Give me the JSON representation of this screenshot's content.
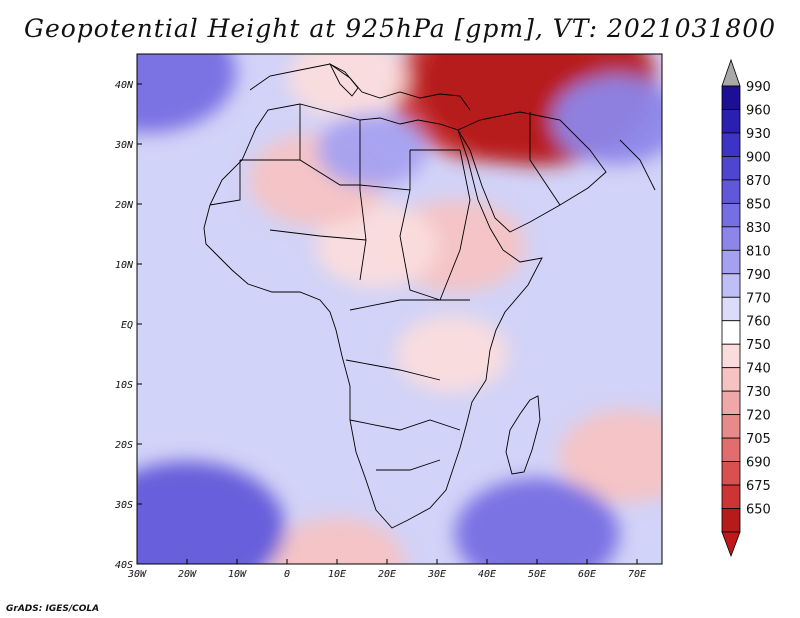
{
  "title": "Geopotential Height at 925hPa [gpm], VT: 2021031800",
  "credit": "GrADS: IGES/COLA",
  "map": {
    "region": "Africa and surrounding oceans",
    "x_ticks": [
      "30W",
      "20W",
      "10W",
      "0",
      "10E",
      "20E",
      "30E",
      "40E",
      "50E",
      "60E",
      "70E"
    ],
    "y_ticks": [
      "40N",
      "30N",
      "20N",
      "10N",
      "EQ",
      "10S",
      "20S",
      "30S",
      "40S"
    ],
    "lon_range": [
      -30,
      75
    ],
    "lat_range": [
      -40,
      45
    ],
    "features": [
      {
        "name": "low over Middle East / Caspian",
        "lon": 42,
        "lat": 39,
        "level": 680
      },
      {
        "name": "low over Caucasus",
        "lon": 50,
        "lat": 40,
        "level": 660
      },
      {
        "name": "low over Sudan/Ethiopia",
        "lon": 34,
        "lat": 13,
        "level": 735
      },
      {
        "name": "low over Chad",
        "lon": 18,
        "lat": 13,
        "level": 745
      },
      {
        "name": "low over Algeria/Mali",
        "lon": 6,
        "lat": 24,
        "level": 735
      },
      {
        "name": "low over Italy",
        "lon": 12,
        "lat": 41,
        "level": 748
      },
      {
        "name": "low over Tanzania/Malawi",
        "lon": 33,
        "lat": -5,
        "level": 752
      },
      {
        "name": "low in Indian Ocean",
        "lon": 68,
        "lat": -22,
        "level": 735
      },
      {
        "name": "low near 10E 40S",
        "lon": 10,
        "lat": -40,
        "level": 735
      },
      {
        "name": "high South Atlantic",
        "lon": -20,
        "lat": -34,
        "level": 868
      },
      {
        "name": "high South Indian Ocean",
        "lon": 50,
        "lat": -35,
        "level": 845
      },
      {
        "name": "high North Atlantic",
        "lon": -28,
        "lat": 42,
        "level": 855
      },
      {
        "name": "high over Libya",
        "lon": 17,
        "lat": 29,
        "level": 805
      },
      {
        "name": "high over Arabian Sea/Iran",
        "lon": 66,
        "lat": 34,
        "level": 820
      }
    ]
  },
  "colorbar": {
    "levels": [
      "990",
      "960",
      "930",
      "900",
      "870",
      "850",
      "830",
      "810",
      "790",
      "770",
      "760",
      "750",
      "740",
      "730",
      "720",
      "705",
      "690",
      "675",
      "650"
    ],
    "colors": [
      "#1c0f96",
      "#2a1fb0",
      "#3d33c4",
      "#4f46cf",
      "#6158d9",
      "#766ee3",
      "#8c86ea",
      "#a5a1f0",
      "#c0bef6",
      "#dcdcfa",
      "#ffffff",
      "#fbdcdc",
      "#f6c3c3",
      "#f0a7a7",
      "#e98a8a",
      "#e16d6d",
      "#d85050",
      "#cd3535",
      "#b61a1a"
    ],
    "top_arrow_color": "#a8a8a8",
    "bottom_arrow_color": "#c01818"
  }
}
